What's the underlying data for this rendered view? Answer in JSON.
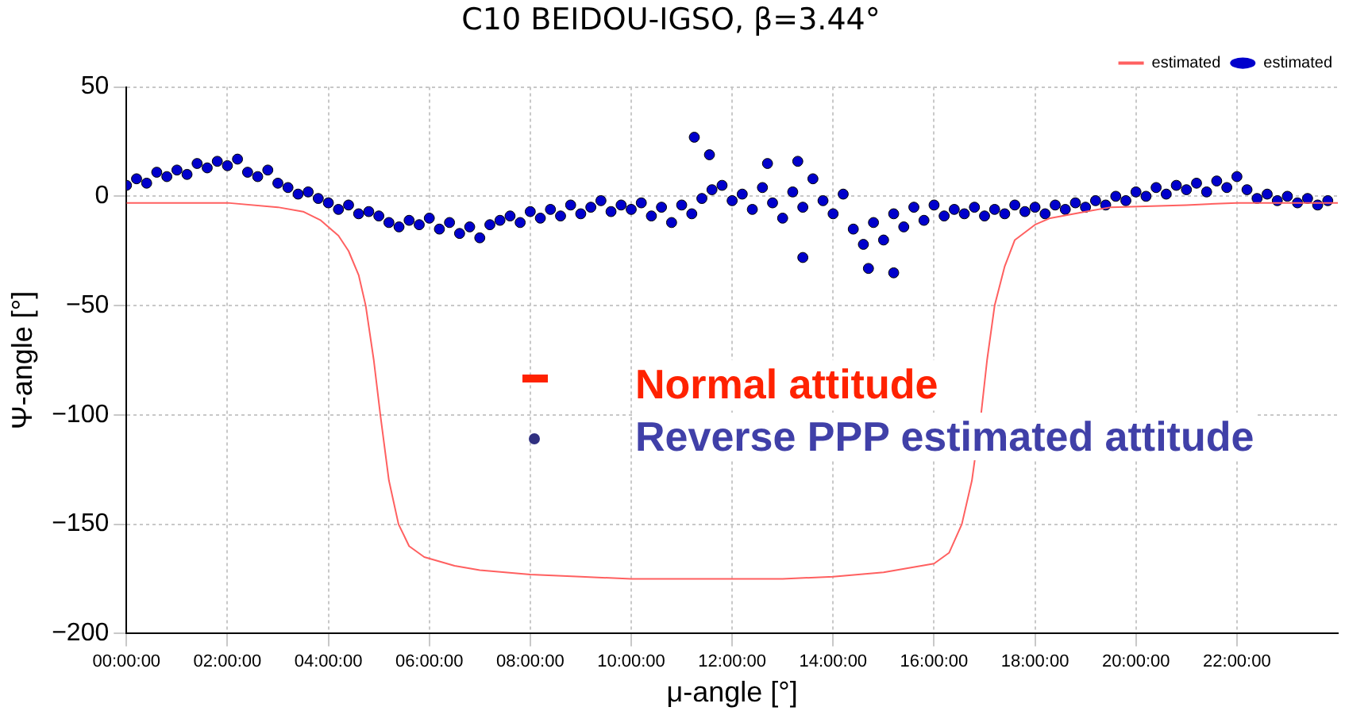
{
  "chart_data": {
    "type": "scatter",
    "title": "C10 BEIDOU-IGSO, β=3.44°",
    "xlabel": "μ-angle [°]",
    "ylabel": "Ψ-angle [°]",
    "xlim": [
      0,
      24
    ],
    "ylim": [
      -200,
      50
    ],
    "xticks": [
      {
        "value": 0,
        "label": "00:00:00"
      },
      {
        "value": 2,
        "label": "02:00:00"
      },
      {
        "value": 4,
        "label": "04:00:00"
      },
      {
        "value": 6,
        "label": "06:00:00"
      },
      {
        "value": 8,
        "label": "08:00:00"
      },
      {
        "value": 10,
        "label": "10:00:00"
      },
      {
        "value": 12,
        "label": "12:00:00"
      },
      {
        "value": 14,
        "label": "14:00:00"
      },
      {
        "value": 16,
        "label": "16:00:00"
      },
      {
        "value": 18,
        "label": "18:00:00"
      },
      {
        "value": 20,
        "label": "20:00:00"
      },
      {
        "value": 22,
        "label": "22:00:00"
      }
    ],
    "yticks": [
      50,
      0,
      -50,
      -100,
      -150,
      -200
    ],
    "grid": true,
    "legend": "top right",
    "annotations": [
      "Normal attitude",
      "Reverse PPP estimated attitude"
    ],
    "series": [
      {
        "name": "estimated",
        "type": "line",
        "color": "#ff6060",
        "marker": "none",
        "x": [
          0,
          1,
          2,
          3,
          3.5,
          3.85,
          4.2,
          4.4,
          4.6,
          4.74,
          4.9,
          5.03,
          5.2,
          5.39,
          5.6,
          5.9,
          6.5,
          7,
          8,
          9,
          10,
          11,
          12,
          13,
          14,
          15,
          16,
          16.3,
          16.55,
          16.75,
          16.93,
          17.05,
          17.2,
          17.4,
          17.6,
          18,
          18.3,
          19,
          19.5,
          21,
          22,
          24
        ],
        "values": [
          -3,
          -3,
          -3,
          -5,
          -7,
          -11,
          -18,
          -25,
          -36,
          -50,
          -75,
          -100,
          -130,
          -150,
          -160,
          -165,
          -169,
          -171,
          -173,
          -174,
          -175,
          -175,
          -175,
          -175,
          -174,
          -172,
          -168,
          -163,
          -150,
          -130,
          -100,
          -75,
          -50,
          -32,
          -20,
          -13,
          -10,
          -7,
          -5,
          -4,
          -3,
          -3
        ]
      },
      {
        "name": "estimated",
        "color": "#0000cc",
        "marker": "circle",
        "x": [
          0,
          0.2,
          0.4,
          0.6,
          0.8,
          1.0,
          1.2,
          1.4,
          1.6,
          1.8,
          2.0,
          2.2,
          2.4,
          2.6,
          2.8,
          3.0,
          3.2,
          3.4,
          3.6,
          3.8,
          4.0,
          4.2,
          4.4,
          4.6,
          4.8,
          5.0,
          5.2,
          5.4,
          5.6,
          5.8,
          6.0,
          6.2,
          6.4,
          6.6,
          6.8,
          7.0,
          7.2,
          7.4,
          7.6,
          7.8,
          8.0,
          8.2,
          8.4,
          8.6,
          8.8,
          9.0,
          9.2,
          9.4,
          9.6,
          9.8,
          10.0,
          10.2,
          10.4,
          10.6,
          10.8,
          11.0,
          11.2,
          11.4,
          11.6,
          11.8,
          12.0,
          12.2,
          12.4,
          12.6,
          12.8,
          13.0,
          13.2,
          13.4,
          13.6,
          13.8,
          14.0,
          14.2,
          14.4,
          14.6,
          14.8,
          15.0,
          15.2,
          15.4,
          15.6,
          15.8,
          16.0,
          16.2,
          16.4,
          16.6,
          16.8,
          17.0,
          17.2,
          17.4,
          17.6,
          17.8,
          18.0,
          18.2,
          18.4,
          18.6,
          18.8,
          19.0,
          19.2,
          19.4,
          19.6,
          19.8,
          20.0,
          20.2,
          20.4,
          20.6,
          20.8,
          21.0,
          21.2,
          21.4,
          21.6,
          21.8,
          22.0,
          22.2,
          22.4,
          22.6,
          22.8,
          23.0,
          23.2,
          23.4,
          23.6,
          23.8,
          11.25,
          11.55,
          12.7,
          13.3,
          14.7,
          15.2,
          13.4
        ],
        "values": [
          5,
          8,
          6,
          11,
          9,
          12,
          10,
          15,
          13,
          16,
          14,
          17,
          11,
          9,
          12,
          6,
          4,
          1,
          2,
          -1,
          -3,
          -6,
          -4,
          -8,
          -7,
          -9,
          -12,
          -14,
          -11,
          -13,
          -10,
          -15,
          -12,
          -17,
          -14,
          -19,
          -13,
          -11,
          -9,
          -12,
          -7,
          -10,
          -6,
          -9,
          -4,
          -8,
          -5,
          -2,
          -7,
          -4,
          -6,
          -3,
          -9,
          -5,
          -12,
          -4,
          -8,
          -1,
          3,
          5,
          -2,
          1,
          -6,
          4,
          -3,
          -10,
          2,
          -5,
          8,
          -2,
          -8,
          1,
          -15,
          -22,
          -12,
          -20,
          -8,
          -14,
          -5,
          -11,
          -4,
          -9,
          -6,
          -8,
          -5,
          -9,
          -6,
          -8,
          -4,
          -7,
          -5,
          -8,
          -4,
          -6,
          -3,
          -5,
          -2,
          -4,
          0,
          -2,
          2,
          0,
          4,
          1,
          5,
          3,
          6,
          2,
          7,
          4,
          9,
          3,
          -1,
          1,
          -2,
          0,
          -3,
          -1,
          -4,
          -2,
          27,
          19,
          15,
          16,
          -33,
          -35,
          -28
        ]
      }
    ]
  }
}
